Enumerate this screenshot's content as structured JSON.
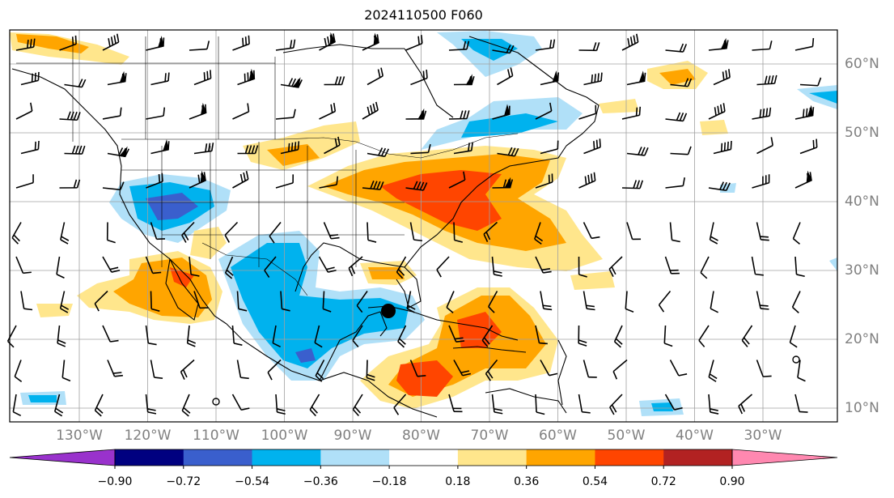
{
  "title": "2024110500 F060",
  "lon_labels": [
    "130°W",
    "120°W",
    "110°W",
    "100°W",
    "90°W",
    "80°W",
    "70°W",
    "60°W",
    "50°W",
    "40°W",
    "30°W"
  ],
  "lat_labels": [
    "60°N",
    "50°N",
    "40°N",
    "30°N",
    "20°N",
    "10°N"
  ],
  "colorbar": {
    "ticks": [
      "−0.90",
      "−0.72",
      "−0.54",
      "−0.36",
      "−0.18",
      "0.18",
      "0.36",
      "0.54",
      "0.72",
      "0.90"
    ],
    "colors": [
      "#9932cc",
      "#000080",
      "#3a5fcd",
      "#00b2ee",
      "#b0e0f8",
      "#ffffff",
      "#ffe68c",
      "#ffa500",
      "#ff4500",
      "#b22222",
      "#ff88b0"
    ]
  },
  "map": {
    "grid": true,
    "lon_range": [
      -135,
      -15
    ],
    "lat_range": [
      7,
      65
    ],
    "storm_marker": "filled-dot",
    "calm_circles": [
      "circle",
      "circle"
    ]
  },
  "colors": {
    "strong_positive": "#ff4500",
    "positive": "#ffa500",
    "weak_positive": "#ffe68c",
    "weak_negative": "#b0e0f8",
    "negative": "#00b2ee",
    "strong_negative": "#3a5fcd"
  }
}
